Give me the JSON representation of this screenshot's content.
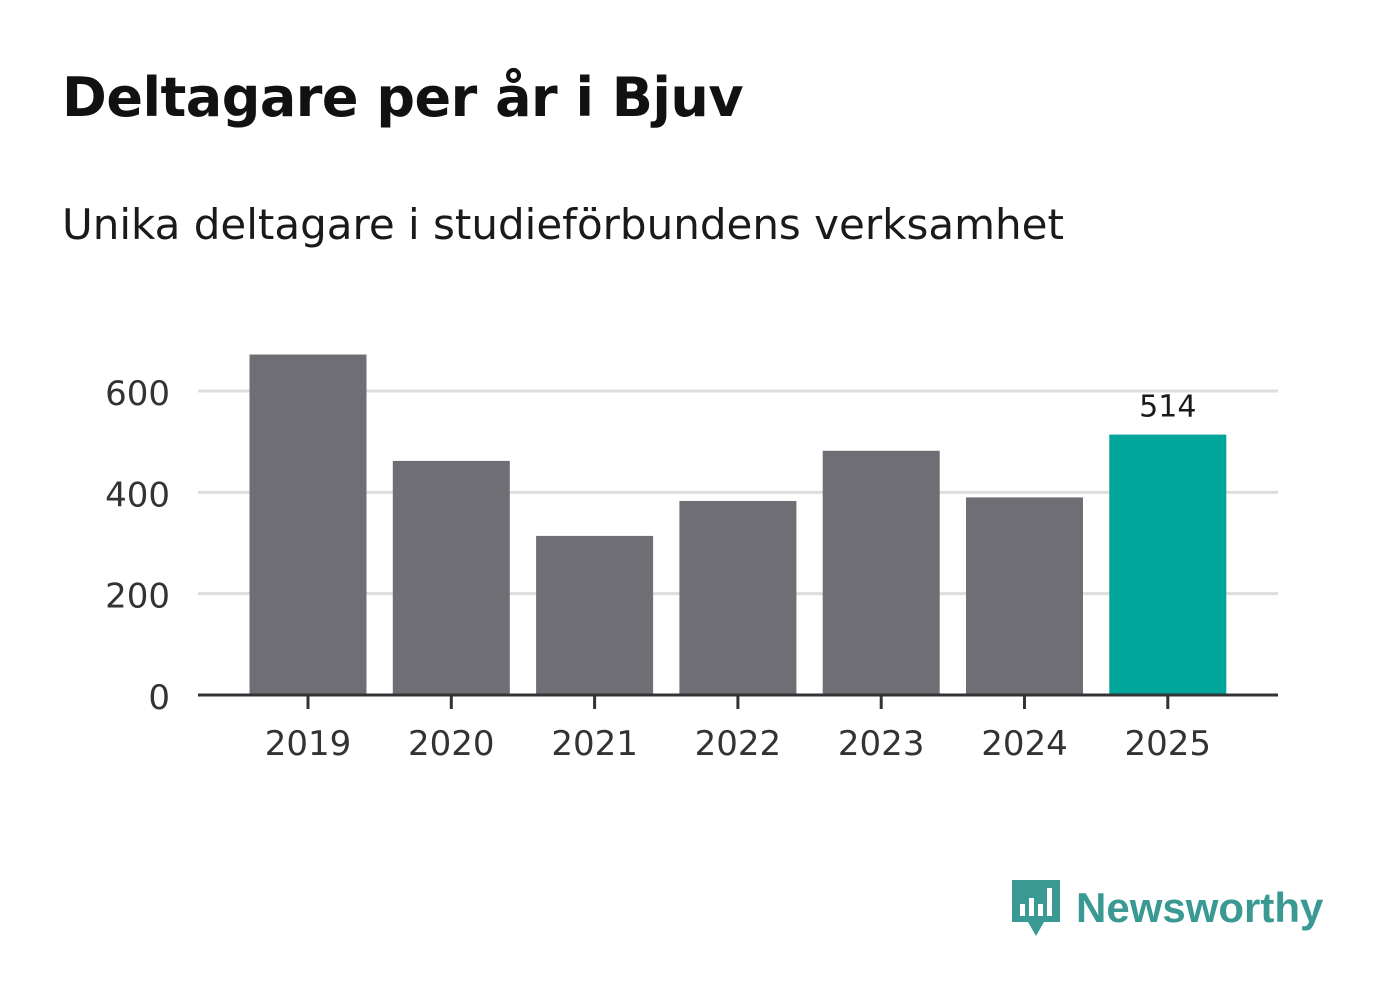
{
  "header": {
    "title": "Deltagare per år i Bjuv",
    "subtitle": "Unika deltagare i studieförbundens verksamhet"
  },
  "chart_data": {
    "type": "bar",
    "title": "Deltagare per år i Bjuv",
    "subtitle": "Unika deltagare i studieförbundens verksamhet",
    "categories": [
      "2019",
      "2020",
      "2021",
      "2022",
      "2023",
      "2024",
      "2025"
    ],
    "values": [
      672,
      462,
      314,
      383,
      482,
      390,
      514
    ],
    "highlight_index": 6,
    "data_labels": [
      {
        "index": 6,
        "text": "514"
      }
    ],
    "yticks": [
      0,
      200,
      400,
      600
    ],
    "ylim": [
      0,
      700
    ],
    "xlabel": "",
    "ylabel": "",
    "grid": true,
    "colors": {
      "bar": "#6f6e74",
      "highlight": "#00a69a",
      "grid": "#dedede",
      "axis": "#333333"
    }
  },
  "logo": {
    "brand": "Newsworthy",
    "icon": "newsworthy-logo-icon",
    "color": "#3a9a93"
  }
}
